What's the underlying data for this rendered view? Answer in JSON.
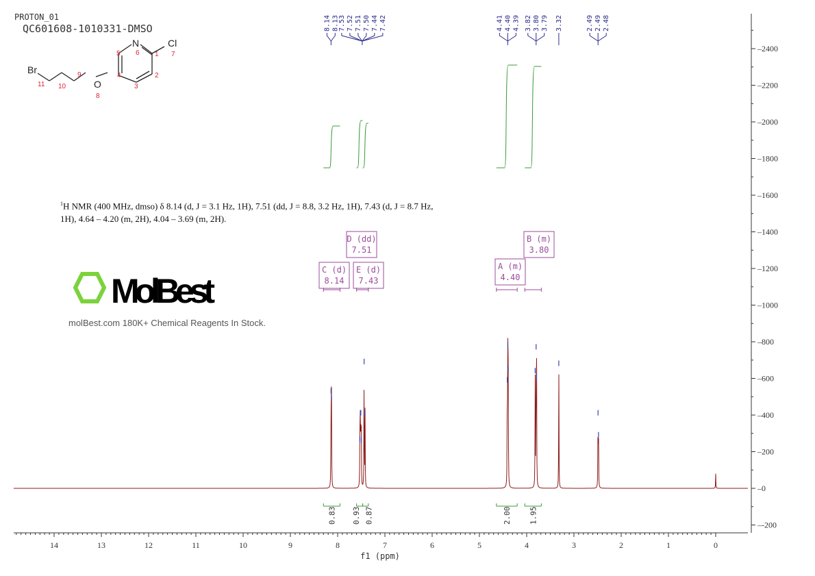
{
  "header": {
    "experiment": "PROTON_01",
    "sample": "QC601608-1010331-DMSO"
  },
  "structure": {
    "atoms": [
      "N",
      "Cl",
      "Br",
      "O"
    ],
    "numbers": [
      "1",
      "2",
      "3",
      "4",
      "5",
      "6",
      "7",
      "8",
      "9",
      "10",
      "11"
    ]
  },
  "description": {
    "line1": "H NMR (400 MHz, dmso) δ 8.14 (d, J = 3.1 Hz, 1H), 7.51 (dd, J = 8.8, 3.2 Hz, 1H), 7.43 (d, J = 8.7 Hz,",
    "sup": "1",
    "line2": "1H), 4.64 – 4.20 (m, 2H), 4.04 – 3.69 (m, 2H)."
  },
  "watermark": {
    "logo": "MolBest",
    "tagline": "molBest.com 180K+ Chemical Reagents In Stock."
  },
  "chart_data": {
    "type": "line",
    "xlabel": "f1 (ppm)",
    "ylabel": "",
    "xlim": [
      14.85,
      -0.68
    ],
    "ylim": [
      -250,
      2600
    ],
    "xticks": [
      14,
      13,
      12,
      11,
      10,
      9,
      8,
      7,
      6,
      5,
      4,
      3,
      2,
      1,
      0
    ],
    "yticks": [
      -200,
      0,
      200,
      400,
      600,
      800,
      1000,
      1200,
      1400,
      1600,
      1800,
      2000,
      2200,
      2400
    ],
    "colors": {
      "spectrum": "#8b1a1a",
      "integral": "#3a9a3a",
      "peak_label": "#2b2b8c",
      "multiplet": "#9b4b9b"
    },
    "peaks": [
      {
        "ppm": 8.14,
        "height": 540
      },
      {
        "ppm": 8.13,
        "height": 500
      },
      {
        "ppm": 7.53,
        "height": 280
      },
      {
        "ppm": 7.52,
        "height": 420
      },
      {
        "ppm": 7.51,
        "height": 420
      },
      {
        "ppm": 7.5,
        "height": 270
      },
      {
        "ppm": 7.44,
        "height": 700
      },
      {
        "ppm": 7.42,
        "height": 420
      },
      {
        "ppm": 4.41,
        "height": 600
      },
      {
        "ppm": 4.4,
        "height": 790
      },
      {
        "ppm": 4.39,
        "height": 660
      },
      {
        "ppm": 3.82,
        "height": 650
      },
      {
        "ppm": 3.8,
        "height": 780
      },
      {
        "ppm": 3.79,
        "height": 620
      },
      {
        "ppm": 3.32,
        "height": 690
      },
      {
        "ppm": 2.49,
        "height": 420
      },
      {
        "ppm": 2.49,
        "height": 0
      },
      {
        "ppm": 2.48,
        "height": 300
      },
      {
        "ppm": 0.0,
        "height": 80
      }
    ],
    "peak_labels": [
      {
        "group": [
          "8.14",
          "8.13"
        ],
        "center": 8.14
      },
      {
        "group": [
          "7.53",
          "7.52",
          "7.51",
          "7.50",
          "7.44",
          "7.42"
        ],
        "center": 7.48
      },
      {
        "group": [
          "4.41",
          "4.40",
          "4.39"
        ],
        "center": 4.4
      },
      {
        "group": [
          "3.82",
          "3.80",
          "3.79"
        ],
        "center": 3.8
      },
      {
        "group": [
          "3.32"
        ],
        "center": 3.32
      },
      {
        "group": [
          "2.49",
          "2.49",
          "2.48"
        ],
        "center": 2.49
      }
    ],
    "integrals": [
      {
        "from": 8.3,
        "to": 7.95,
        "value": "0.83"
      },
      {
        "from": 7.6,
        "to": 7.47,
        "value": "0.93"
      },
      {
        "from": 7.47,
        "to": 7.35,
        "value": "0.87"
      },
      {
        "from": 4.64,
        "to": 4.2,
        "value": "2.00"
      },
      {
        "from": 4.04,
        "to": 3.69,
        "value": "1.95"
      }
    ],
    "multiplets": [
      {
        "label": "C (d)",
        "shift": "8.14",
        "ppm": 8.14
      },
      {
        "label": "D (dd)",
        "shift": "7.51",
        "ppm": 7.51
      },
      {
        "label": "E (d)",
        "shift": "7.43",
        "ppm": 7.43
      },
      {
        "label": "A (m)",
        "shift": "4.40",
        "ppm": 4.4
      },
      {
        "label": "B (m)",
        "shift": "3.80",
        "ppm": 3.8
      }
    ]
  }
}
